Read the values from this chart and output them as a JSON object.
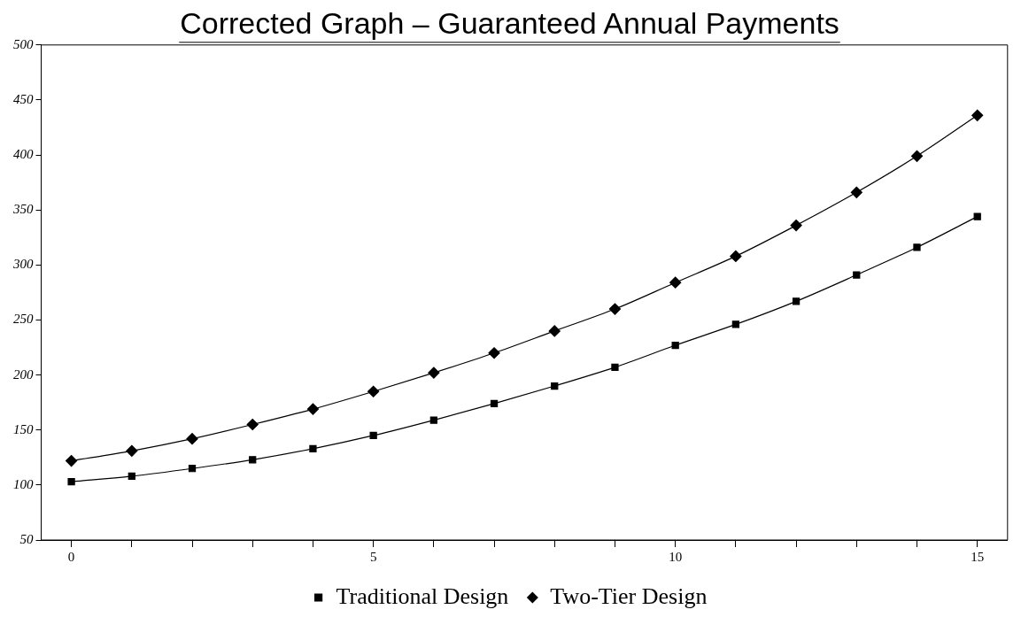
{
  "chart_data": {
    "type": "line",
    "title": "Corrected Graph – Guaranteed Annual Payments",
    "x": [
      0,
      1,
      2,
      3,
      4,
      5,
      6,
      7,
      8,
      9,
      10,
      11,
      12,
      13,
      14,
      15
    ],
    "series": [
      {
        "name": "Traditional Design",
        "color": "#000000",
        "marker": "square",
        "values": [
          103,
          108,
          115,
          123,
          133,
          145,
          159,
          174,
          190,
          207,
          227,
          246,
          267,
          291,
          316,
          344
        ]
      },
      {
        "name": "Two-Tier Design",
        "color": "#000000",
        "marker": "diamond",
        "values": [
          122,
          131,
          142,
          155,
          169,
          185,
          202,
          220,
          240,
          260,
          284,
          308,
          336,
          366,
          399,
          436
        ]
      }
    ],
    "xlim": [
      -0.5,
      15.5
    ],
    "xticks": [
      0,
      {
        "value": 1,
        "label": null
      },
      {
        "value": 2,
        "label": null
      },
      {
        "value": 3,
        "label": null
      },
      {
        "value": 4,
        "label": null
      },
      5,
      {
        "value": 6,
        "label": null
      },
      {
        "value": 7,
        "label": null
      },
      {
        "value": 8,
        "label": null
      },
      {
        "value": 9,
        "label": null
      },
      10,
      {
        "value": 11,
        "label": null
      },
      {
        "value": 12,
        "label": null
      },
      {
        "value": 13,
        "label": null
      },
      {
        "value": 14,
        "label": null
      },
      15
    ],
    "ylim": [
      50,
      500
    ],
    "yticks": [
      50,
      100,
      150,
      200,
      250,
      300,
      350,
      400,
      450,
      500
    ],
    "grid": false,
    "legend": "bottom",
    "line_style": "solid"
  }
}
